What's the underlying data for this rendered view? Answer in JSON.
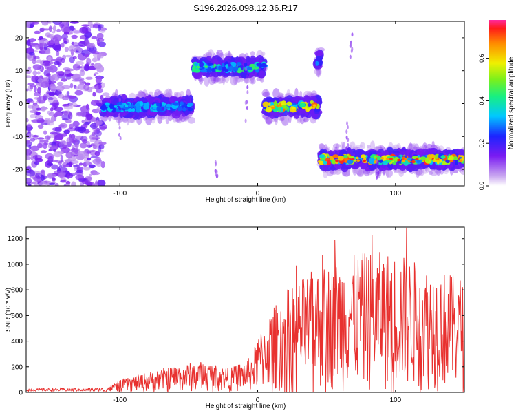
{
  "figure": {
    "title": "S196.2026.098.12.36.R17"
  },
  "chart_data": [
    {
      "type": "heatmap",
      "title": "S196.2026.098.12.36.R17",
      "xlabel": "Height of straight line (km)",
      "ylabel": "Frequency (Hz)",
      "xlim": [
        -168,
        150
      ],
      "ylim": [
        -25,
        25
      ],
      "xticks": [
        -100,
        0,
        100
      ],
      "yticks": [
        20,
        10,
        0,
        -10,
        -20
      ],
      "colorbar": {
        "label": "Normalized spectral amplitude",
        "range": [
          0.0,
          0.78
        ],
        "ticks": [
          0.0,
          0.2,
          0.4,
          0.6
        ]
      },
      "segments": [
        {
          "x_start": -168,
          "x_end": -112,
          "center_hz": 0,
          "kind": "noise"
        },
        {
          "x_start": -112,
          "x_end": -48,
          "center_hz": -1,
          "kind": "signal",
          "peak": 0.35
        },
        {
          "x_start": -46,
          "x_end": 5,
          "center_hz": 11,
          "kind": "signal",
          "peak": 0.45
        },
        {
          "x_start": 5,
          "x_end": 44,
          "center_hz": -1,
          "kind": "signal",
          "peak": 0.7
        },
        {
          "x_start": 43,
          "x_end": 46,
          "center_hz": 13,
          "kind": "signal",
          "peak": 0.3
        },
        {
          "x_start": 45,
          "x_end": 150,
          "center_hz": -17,
          "kind": "signal",
          "peak": 0.75
        }
      ]
    },
    {
      "type": "line",
      "xlabel": "Height of straight line (km)",
      "ylabel": "SNR (10 * v/v)",
      "xlim": [
        -168,
        150
      ],
      "ylim": [
        0,
        1290
      ],
      "xticks": [
        -100,
        0,
        100
      ],
      "yticks": [
        0,
        200,
        400,
        600,
        800,
        1000,
        1200
      ],
      "series": [
        {
          "name": "SNR",
          "color": "#e8312f",
          "envelope": [
            {
              "x": -168,
              "y": 30
            },
            {
              "x": -110,
              "y": 35
            },
            {
              "x": -100,
              "y": 95
            },
            {
              "x": -80,
              "y": 160
            },
            {
              "x": -60,
              "y": 210
            },
            {
              "x": -40,
              "y": 245
            },
            {
              "x": -20,
              "y": 190
            },
            {
              "x": -5,
              "y": 280
            },
            {
              "x": 5,
              "y": 560
            },
            {
              "x": 20,
              "y": 800
            },
            {
              "x": 40,
              "y": 950
            },
            {
              "x": 60,
              "y": 1050
            },
            {
              "x": 80,
              "y": 1100
            },
            {
              "x": 100,
              "y": 1100
            },
            {
              "x": 120,
              "y": 1000
            },
            {
              "x": 150,
              "y": 900
            }
          ]
        }
      ]
    }
  ]
}
